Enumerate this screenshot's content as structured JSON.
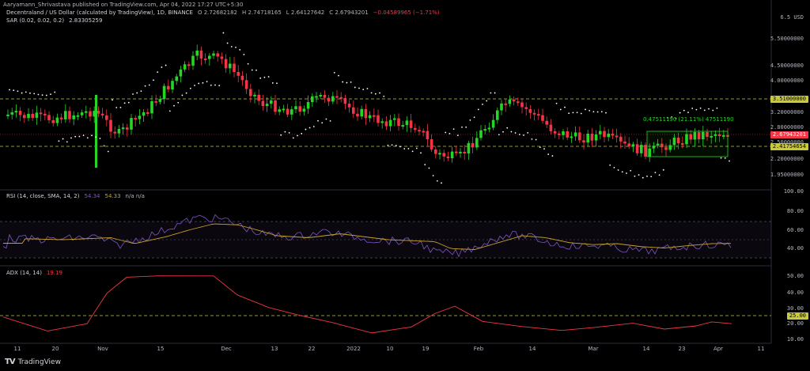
{
  "header": {
    "publisher_line": "Aaryamann_Shrivastava published on TradingView.com, Apr 04, 2022 17:27 UTC+5:30"
  },
  "main_legend": {
    "title": "Decentraland / US Dollar (calculated by TradingView), 1D, BINANCE",
    "o": "O 2.72682182",
    "h": "H 2.74718165",
    "l": "L 2.64127642",
    "c": "C 2.67943201",
    "chg": "−0.04589965 (−1.71%)"
  },
  "sar_legend": {
    "label": "SAR (0.02, 0.02, 0.2)",
    "value": "2.83305259"
  },
  "rsi_legend": {
    "label": "RSI (14, close, SMA, 14, 2)",
    "v1": "54.34",
    "v2": "54.33",
    "v3": "n/a n/a"
  },
  "adx_legend": {
    "label": "ADX (14, 14)",
    "value": "19.19"
  },
  "annotation": {
    "text": "0.47511190 (21.11%) 47511190"
  },
  "price_axis": {
    "ticks": [
      "6.5 USD",
      "5.50000000",
      "4.50000000",
      "4.00000000",
      "3.20000000",
      "2.80000000",
      "2.50000000",
      "2.20000000",
      "1.95000000"
    ],
    "tag_resistance": "3.51000000",
    "tag_current": "2.67943201",
    "tag_support": "2.41754654"
  },
  "rsi_axis": {
    "ticks": [
      "100.00",
      "80.00",
      "60.00",
      "40.00"
    ]
  },
  "adx_axis": {
    "ticks": [
      "50.00",
      "40.00",
      "30.00",
      "20.00",
      "10.00"
    ],
    "tag": "25.00"
  },
  "time_axis": {
    "labels": [
      "11",
      "20",
      "Nov",
      "15",
      "Dec",
      "13",
      "22",
      "2022",
      "10",
      "19",
      "Feb",
      "14",
      "Mar",
      "14",
      "23",
      "Apr",
      "11"
    ]
  },
  "footer": {
    "brand": "TradingView"
  },
  "colors": {
    "up": "#26d626",
    "down": "#f23645",
    "sar": "#ffffff",
    "rsi": "#7e57c2",
    "rsi_ma": "#c9a227",
    "adx": "#f23645",
    "level": "#c9c93a",
    "box": "#26d626"
  }
}
